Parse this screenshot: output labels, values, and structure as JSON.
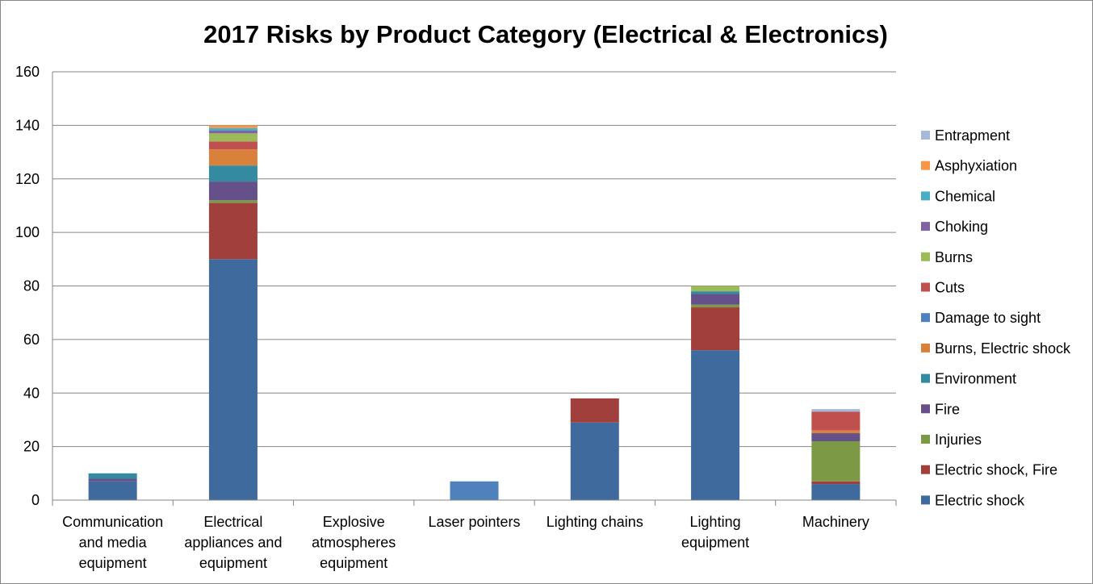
{
  "chart_data": {
    "type": "bar",
    "stacked": true,
    "title": "2017 Risks by Product Category (Electrical & Electronics)",
    "xlabel": "",
    "ylabel": "",
    "ylim": [
      0,
      160
    ],
    "yticks": [
      0,
      20,
      40,
      60,
      80,
      100,
      120,
      140,
      160
    ],
    "grid": true,
    "legend_position": "right",
    "categories": [
      [
        "Communication",
        "and media",
        "equipment"
      ],
      [
        "Electrical",
        "appliances and",
        "equipment"
      ],
      [
        "Explosive",
        "atmospheres",
        "equipment"
      ],
      [
        "Laser pointers"
      ],
      [
        "Lighting chains"
      ],
      [
        "Lighting",
        "equipment"
      ],
      [
        "Machinery"
      ]
    ],
    "series": [
      {
        "name": "Electric shock",
        "color": "#3F6A9E",
        "values": [
          7,
          90,
          0,
          0,
          29,
          56,
          6
        ]
      },
      {
        "name": "Electric shock, Fire",
        "color": "#A13F3C",
        "values": [
          0,
          21,
          0,
          0,
          9,
          16,
          1
        ]
      },
      {
        "name": "Injuries",
        "color": "#7C9A46",
        "values": [
          0,
          1,
          0,
          0,
          0,
          1,
          15
        ]
      },
      {
        "name": "Fire",
        "color": "#66508A",
        "values": [
          1,
          7,
          0,
          0,
          0,
          4,
          3
        ]
      },
      {
        "name": "Environment",
        "color": "#348AA0",
        "values": [
          2,
          6,
          0,
          0,
          0,
          1,
          0
        ]
      },
      {
        "name": "Burns, Electric shock",
        "color": "#D9803A",
        "values": [
          0,
          6,
          0,
          0,
          0,
          0,
          1
        ]
      },
      {
        "name": "Damage to sight",
        "color": "#4F81BD",
        "values": [
          0,
          0,
          0,
          7,
          0,
          0,
          0
        ]
      },
      {
        "name": "Cuts",
        "color": "#C0504D",
        "values": [
          0,
          3,
          0,
          0,
          0,
          0,
          7
        ]
      },
      {
        "name": "Burns",
        "color": "#9BBB59",
        "values": [
          0,
          3,
          0,
          0,
          0,
          2,
          0
        ]
      },
      {
        "name": "Choking",
        "color": "#8064A2",
        "values": [
          0,
          1,
          0,
          0,
          0,
          0,
          0
        ]
      },
      {
        "name": "Chemical",
        "color": "#4BACC6",
        "values": [
          0,
          1,
          0,
          0,
          0,
          0,
          0
        ]
      },
      {
        "name": "Asphyxiation",
        "color": "#F79646",
        "values": [
          0,
          1,
          0,
          0,
          0,
          0,
          0
        ]
      },
      {
        "name": "Entrapment",
        "color": "#A6B9D7",
        "values": [
          0,
          0,
          0,
          0,
          0,
          0,
          1
        ]
      }
    ]
  }
}
